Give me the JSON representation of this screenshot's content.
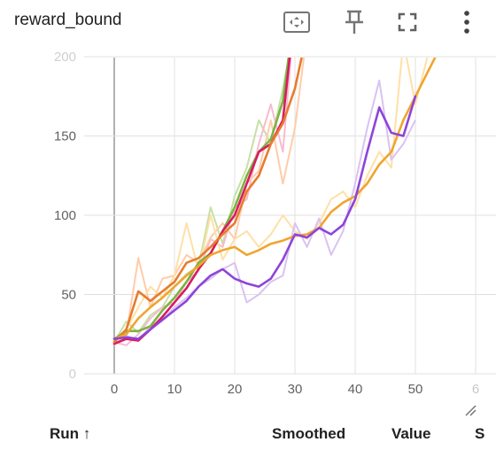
{
  "header": {
    "title": "reward_bound",
    "icons": [
      "fit-domain-icon",
      "pin-icon",
      "fullscreen-icon",
      "more-vert-icon"
    ]
  },
  "table_header": {
    "run": "Run ↑",
    "smoothed": "Smoothed",
    "value": "Value",
    "step": "S"
  },
  "chart_data": {
    "type": "line",
    "title": "reward_bound",
    "xlabel": "",
    "ylabel": "",
    "xlim": [
      -5,
      60
    ],
    "ylim": [
      0,
      200
    ],
    "x_ticks": [
      "0",
      "10",
      "20",
      "30",
      "40",
      "50",
      "6"
    ],
    "y_ticks": [
      "0",
      "50",
      "100",
      "150",
      "200"
    ],
    "grid": true,
    "series": [
      {
        "color": "#7CB342",
        "raw_color": "#C5E1A5",
        "x": [
          0,
          2,
          4,
          6,
          8,
          10,
          12,
          14,
          16,
          18,
          20,
          22,
          24,
          26,
          28,
          30
        ],
        "raw": [
          20,
          33,
          26,
          37,
          42,
          55,
          63,
          68,
          105,
          82,
          112,
          130,
          160,
          145,
          180,
          220
        ],
        "smoothed": [
          22,
          27,
          27,
          30,
          40,
          48,
          58,
          70,
          76,
          90,
          105,
          125,
          140,
          148,
          172,
          230
        ]
      },
      {
        "color": "#D81B60",
        "raw_color": "#F8BBD0",
        "x": [
          0,
          2,
          4,
          6,
          8,
          10,
          12,
          14,
          16,
          18,
          20,
          22,
          24,
          26,
          28,
          30
        ],
        "raw": [
          20,
          18,
          25,
          35,
          42,
          45,
          58,
          65,
          85,
          80,
          105,
          110,
          145,
          170,
          140,
          230
        ],
        "smoothed": [
          19,
          22,
          21,
          28,
          36,
          45,
          54,
          66,
          76,
          90,
          100,
          120,
          140,
          145,
          160,
          230
        ]
      },
      {
        "color": "#E67C2E",
        "raw_color": "#FFCCAA",
        "x": [
          0,
          2,
          4,
          6,
          8,
          10,
          12,
          14,
          16,
          18,
          20,
          22,
          24,
          26,
          28,
          30,
          32
        ],
        "raw": [
          18,
          25,
          73,
          42,
          60,
          62,
          75,
          70,
          86,
          95,
          85,
          120,
          128,
          160,
          120,
          155,
          215
        ],
        "smoothed": [
          20,
          28,
          52,
          46,
          52,
          58,
          70,
          73,
          80,
          88,
          95,
          115,
          125,
          145,
          158,
          180,
          215
        ]
      },
      {
        "color": "#EFA52F",
        "raw_color": "#FFE0A6",
        "x": [
          0,
          2,
          4,
          6,
          8,
          10,
          12,
          14,
          16,
          18,
          20,
          22,
          24,
          26,
          28,
          30,
          32,
          34,
          36,
          38,
          40,
          42,
          44,
          46,
          48,
          50,
          52,
          54
        ],
        "raw": [
          22,
          28,
          42,
          55,
          48,
          62,
          95,
          65,
          100,
          72,
          85,
          90,
          80,
          88,
          100,
          90,
          85,
          95,
          110,
          115,
          105,
          125,
          140,
          130,
          210,
          170,
          200,
          210
        ],
        "smoothed": [
          22,
          25,
          35,
          42,
          48,
          55,
          62,
          68,
          75,
          78,
          80,
          75,
          78,
          82,
          84,
          87,
          88,
          92,
          102,
          108,
          112,
          120,
          132,
          140,
          160,
          175,
          190,
          205
        ]
      },
      {
        "color": "#8E44DA",
        "raw_color": "#D9C3F0",
        "x": [
          0,
          2,
          4,
          6,
          8,
          10,
          12,
          14,
          16,
          18,
          20,
          22,
          24,
          26,
          28,
          30,
          32,
          34,
          36,
          38,
          40,
          42,
          44,
          46,
          48,
          50
        ],
        "raw": [
          22,
          24,
          21,
          30,
          34,
          42,
          48,
          55,
          60,
          66,
          70,
          45,
          50,
          58,
          62,
          95,
          80,
          98,
          75,
          90,
          120,
          155,
          185,
          135,
          145,
          160
        ],
        "smoothed": [
          22,
          23,
          22,
          28,
          34,
          40,
          46,
          55,
          62,
          66,
          60,
          57,
          55,
          60,
          72,
          88,
          86,
          92,
          88,
          94,
          110,
          140,
          168,
          152,
          150,
          175
        ]
      }
    ]
  }
}
